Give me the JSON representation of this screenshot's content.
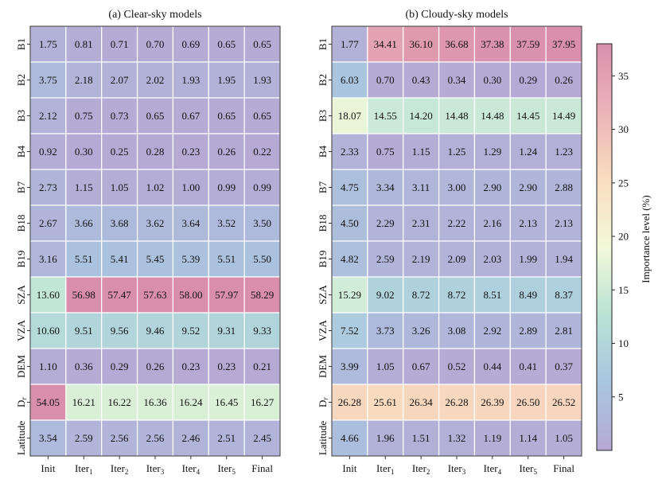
{
  "chart_data": [
    {
      "type": "heatmap",
      "title": "(a) Clear-sky models",
      "x_categories": [
        "Init",
        "Iter1",
        "Iter2",
        "Iter3",
        "Iter4",
        "Iter5",
        "Final"
      ],
      "y_categories": [
        "B1",
        "B2",
        "B3",
        "B4",
        "B7",
        "B18",
        "B19",
        "SZA",
        "VZA",
        "DEM",
        "Dr",
        "Latitude"
      ],
      "values": [
        [
          1.75,
          0.81,
          0.71,
          0.7,
          0.69,
          0.65,
          0.65
        ],
        [
          3.75,
          2.18,
          2.07,
          2.02,
          1.93,
          1.95,
          1.93
        ],
        [
          2.12,
          0.75,
          0.73,
          0.65,
          0.67,
          0.65,
          0.65
        ],
        [
          0.92,
          0.3,
          0.25,
          0.28,
          0.23,
          0.26,
          0.22
        ],
        [
          2.73,
          1.15,
          1.05,
          1.02,
          1.0,
          0.99,
          0.99
        ],
        [
          2.67,
          3.66,
          3.68,
          3.62,
          3.64,
          3.52,
          3.5
        ],
        [
          3.16,
          5.51,
          5.41,
          5.45,
          5.39,
          5.51,
          5.5
        ],
        [
          13.6,
          56.98,
          57.47,
          57.63,
          58.0,
          57.97,
          58.29
        ],
        [
          10.6,
          9.51,
          9.56,
          9.46,
          9.52,
          9.31,
          9.33
        ],
        [
          1.1,
          0.36,
          0.29,
          0.26,
          0.23,
          0.23,
          0.21
        ],
        [
          54.05,
          16.21,
          16.22,
          16.36,
          16.24,
          16.45,
          16.27
        ],
        [
          3.54,
          2.59,
          2.56,
          2.56,
          2.46,
          2.51,
          2.45
        ]
      ]
    },
    {
      "type": "heatmap",
      "title": "(b) Cloudy-sky models",
      "x_categories": [
        "Init",
        "Iter1",
        "Iter2",
        "Iter3",
        "Iter4",
        "Iter5",
        "Final"
      ],
      "y_categories": [
        "B1",
        "B2",
        "B3",
        "B4",
        "B7",
        "B18",
        "B19",
        "SZA",
        "VZA",
        "DEM",
        "Dr",
        "Latitude"
      ],
      "values": [
        [
          1.77,
          34.41,
          36.1,
          36.68,
          37.38,
          37.59,
          37.95
        ],
        [
          6.03,
          0.7,
          0.43,
          0.34,
          0.3,
          0.29,
          0.26
        ],
        [
          18.07,
          14.55,
          14.2,
          14.48,
          14.48,
          14.45,
          14.49
        ],
        [
          2.33,
          0.75,
          1.15,
          1.25,
          1.29,
          1.24,
          1.23
        ],
        [
          4.75,
          3.34,
          3.11,
          3.0,
          2.9,
          2.9,
          2.88
        ],
        [
          4.5,
          2.29,
          2.31,
          2.22,
          2.16,
          2.13,
          2.13
        ],
        [
          4.82,
          2.59,
          2.19,
          2.09,
          2.03,
          1.99,
          1.94
        ],
        [
          15.29,
          9.02,
          8.72,
          8.72,
          8.51,
          8.49,
          8.37
        ],
        [
          7.52,
          3.73,
          3.26,
          3.08,
          2.92,
          2.89,
          2.81
        ],
        [
          3.99,
          1.05,
          0.67,
          0.52,
          0.44,
          0.41,
          0.37
        ],
        [
          26.28,
          25.61,
          26.34,
          26.28,
          26.39,
          26.5,
          26.52
        ],
        [
          4.66,
          1.96,
          1.51,
          1.32,
          1.19,
          1.14,
          1.05
        ]
      ]
    }
  ],
  "colorbar": {
    "label": "Importance level (%)",
    "ticks": [
      5,
      10,
      15,
      20,
      25,
      30,
      35
    ],
    "range": [
      0,
      38
    ],
    "colors": [
      "#b6a9d4",
      "#a9c6e0",
      "#b9e3d5",
      "#f2f8d9",
      "#f9ddbf",
      "#ecb3b9",
      "#d98fac"
    ]
  }
}
